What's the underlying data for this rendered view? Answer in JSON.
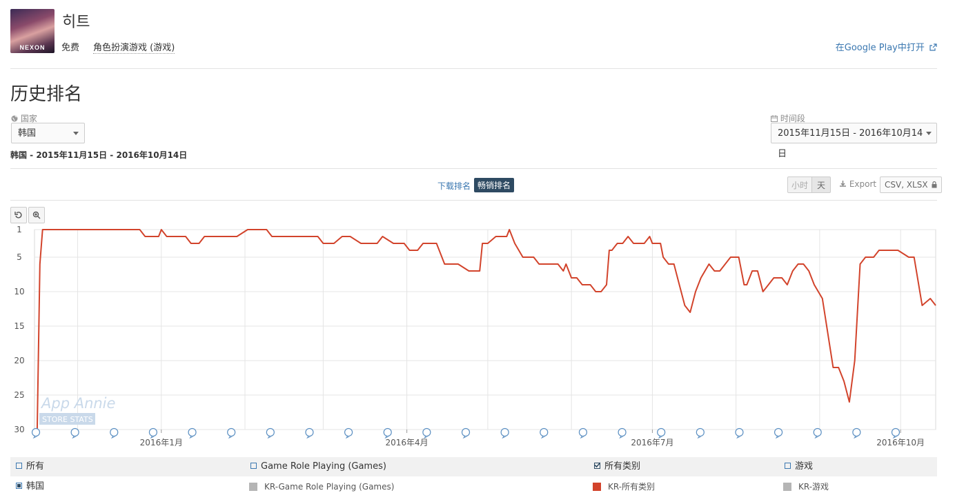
{
  "app": {
    "title": "히트",
    "icon_brand": "NEXON",
    "price": "免费",
    "category": "角色扮演游戏 (游戏)",
    "store_link": "在Google Play中打开",
    "external_icon": "external-link-icon"
  },
  "section_title": "历史排名",
  "filters": {
    "country_label": "国家",
    "country_icon": "globe-icon",
    "country_value": "韩国",
    "period_label": "时间段",
    "period_icon": "calendar-icon",
    "period_value": "2015年11月15日 - 2016年10月14日"
  },
  "summary": "韩国 - 2015年11月15日 - 2016年10月14日",
  "tabs": {
    "downloads": "下载排名",
    "grossing": "畅销排名",
    "active": "grossing"
  },
  "granularity": {
    "hour": "小时",
    "day": "天"
  },
  "export": {
    "label": "Export",
    "formats": "CSV, XLSX",
    "download_icon": "download-icon",
    "lock_icon": "lock-icon"
  },
  "chart_controls": {
    "reset_icon": "reset-icon",
    "zoom_icon": "zoom-icon"
  },
  "watermark": {
    "line1": "App Annie",
    "line2": "STORE STATS"
  },
  "chart_data": {
    "type": "line",
    "y_reversed": true,
    "ylim": [
      1,
      30
    ],
    "y_ticks": [
      1,
      5,
      10,
      15,
      20,
      25,
      30
    ],
    "x_ticks": [
      "2016年1月",
      "2016年4月",
      "2016年7月",
      "2016年10月"
    ],
    "x_tick_dates": [
      "2016-01-01",
      "2016-04-01",
      "2016-07-01",
      "2016-10-01"
    ],
    "x_range": [
      "2015-11-15",
      "2016-10-14"
    ],
    "grid": true,
    "color": "#d2432b",
    "series": [
      {
        "name": "KR-所有类别",
        "points": [
          [
            "2015-11-16",
            30
          ],
          [
            "2015-11-17",
            6
          ],
          [
            "2015-11-18",
            1
          ],
          [
            "2015-12-24",
            1
          ],
          [
            "2015-12-26",
            2
          ],
          [
            "2015-12-31",
            2
          ],
          [
            "2016-01-01",
            1
          ],
          [
            "2016-01-03",
            2
          ],
          [
            "2016-01-10",
            2
          ],
          [
            "2016-01-12",
            3
          ],
          [
            "2016-01-15",
            3
          ],
          [
            "2016-01-17",
            2
          ],
          [
            "2016-01-29",
            2
          ],
          [
            "2016-02-02",
            1
          ],
          [
            "2016-02-09",
            1
          ],
          [
            "2016-02-11",
            2
          ],
          [
            "2016-02-28",
            2
          ],
          [
            "2016-03-01",
            3
          ],
          [
            "2016-03-05",
            3
          ],
          [
            "2016-03-08",
            2
          ],
          [
            "2016-03-11",
            2
          ],
          [
            "2016-03-15",
            3
          ],
          [
            "2016-03-21",
            3
          ],
          [
            "2016-03-23",
            2
          ],
          [
            "2016-03-27",
            3
          ],
          [
            "2016-03-31",
            3
          ],
          [
            "2016-04-02",
            4
          ],
          [
            "2016-04-05",
            4
          ],
          [
            "2016-04-07",
            3
          ],
          [
            "2016-04-12",
            3
          ],
          [
            "2016-04-15",
            6
          ],
          [
            "2016-04-20",
            6
          ],
          [
            "2016-04-24",
            7
          ],
          [
            "2016-04-28",
            7
          ],
          [
            "2016-04-29",
            3
          ],
          [
            "2016-05-01",
            3
          ],
          [
            "2016-05-04",
            2
          ],
          [
            "2016-05-08",
            2
          ],
          [
            "2016-05-09",
            1
          ],
          [
            "2016-05-11",
            3
          ],
          [
            "2016-05-14",
            5
          ],
          [
            "2016-05-18",
            5
          ],
          [
            "2016-05-20",
            6
          ],
          [
            "2016-05-27",
            6
          ],
          [
            "2016-05-29",
            7
          ],
          [
            "2016-05-30",
            6
          ],
          [
            "2016-06-01",
            8
          ],
          [
            "2016-06-03",
            8
          ],
          [
            "2016-06-05",
            9
          ],
          [
            "2016-06-08",
            9
          ],
          [
            "2016-06-10",
            10
          ],
          [
            "2016-06-12",
            10
          ],
          [
            "2016-06-14",
            9
          ],
          [
            "2016-06-15",
            4
          ],
          [
            "2016-06-16",
            4
          ],
          [
            "2016-06-18",
            3
          ],
          [
            "2016-06-20",
            3
          ],
          [
            "2016-06-22",
            2
          ],
          [
            "2016-06-24",
            3
          ],
          [
            "2016-06-28",
            3
          ],
          [
            "2016-06-30",
            2
          ],
          [
            "2016-07-01",
            3
          ],
          [
            "2016-07-04",
            3
          ],
          [
            "2016-07-05",
            5
          ],
          [
            "2016-07-07",
            6
          ],
          [
            "2016-07-09",
            6
          ],
          [
            "2016-07-11",
            9
          ],
          [
            "2016-07-13",
            12
          ],
          [
            "2016-07-15",
            13
          ],
          [
            "2016-07-17",
            10
          ],
          [
            "2016-07-19",
            8
          ],
          [
            "2016-07-22",
            6
          ],
          [
            "2016-07-24",
            7
          ],
          [
            "2016-07-26",
            7
          ],
          [
            "2016-07-28",
            6
          ],
          [
            "2016-07-30",
            5
          ],
          [
            "2016-08-02",
            5
          ],
          [
            "2016-08-04",
            9
          ],
          [
            "2016-08-05",
            9
          ],
          [
            "2016-08-07",
            7
          ],
          [
            "2016-08-09",
            7
          ],
          [
            "2016-08-11",
            10
          ],
          [
            "2016-08-13",
            9
          ],
          [
            "2016-08-15",
            8
          ],
          [
            "2016-08-18",
            8
          ],
          [
            "2016-08-20",
            9
          ],
          [
            "2016-08-22",
            7
          ],
          [
            "2016-08-24",
            6
          ],
          [
            "2016-08-26",
            6
          ],
          [
            "2016-08-28",
            7
          ],
          [
            "2016-08-30",
            9
          ],
          [
            "2016-09-02",
            11
          ],
          [
            "2016-09-04",
            16
          ],
          [
            "2016-09-06",
            21
          ],
          [
            "2016-09-08",
            21
          ],
          [
            "2016-09-10",
            23
          ],
          [
            "2016-09-12",
            26
          ],
          [
            "2016-09-14",
            20
          ],
          [
            "2016-09-16",
            6
          ],
          [
            "2016-09-18",
            5
          ],
          [
            "2016-09-21",
            5
          ],
          [
            "2016-09-23",
            4
          ],
          [
            "2016-09-25",
            4
          ],
          [
            "2016-09-30",
            4
          ],
          [
            "2016-10-04",
            5
          ],
          [
            "2016-10-06",
            5
          ],
          [
            "2016-10-09",
            12
          ],
          [
            "2016-10-12",
            11
          ],
          [
            "2016-10-14",
            12
          ]
        ]
      }
    ]
  },
  "legend": {
    "row1": [
      {
        "label": "所有",
        "checked": false
      },
      {
        "label": "Game Role Playing (Games)",
        "checked": false
      },
      {
        "label": "所有类别",
        "checked": true
      },
      {
        "label": "游戏",
        "checked": false
      }
    ],
    "row2": [
      {
        "label": "韩国",
        "kind": "radio"
      },
      {
        "label": "KR-Game Role Playing (Games)",
        "color": "#b5b5b5"
      },
      {
        "label": "KR-所有类别",
        "color": "#d2432b"
      },
      {
        "label": "KR-游戏",
        "color": "#b5b5b5"
      }
    ]
  }
}
